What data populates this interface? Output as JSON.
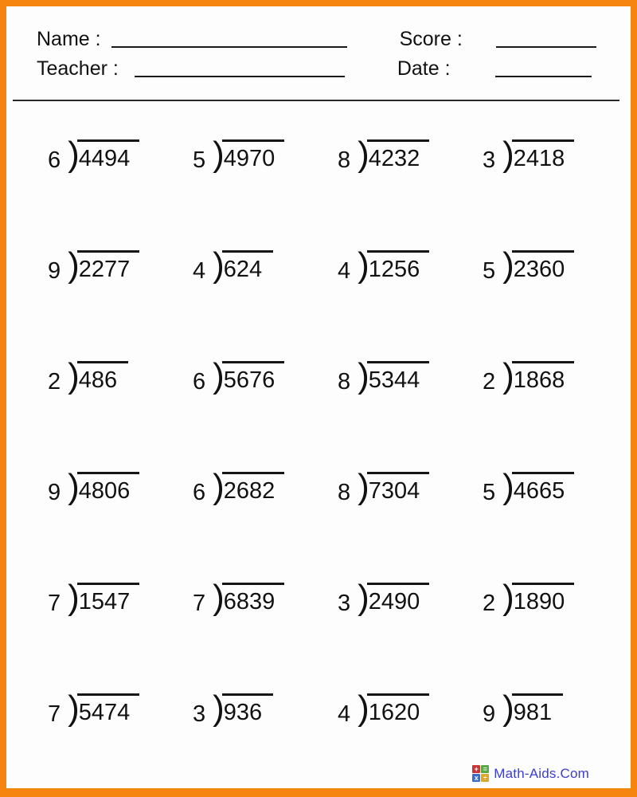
{
  "colors": {
    "border_orange": "#f5850f",
    "brand_blue": "#3c3cd8",
    "ink": "#111111"
  },
  "header": {
    "name_label": "Name :",
    "teacher_label": "Teacher :",
    "score_label": "Score :",
    "date_label": "Date :"
  },
  "glyphs": {
    "bracket": ")"
  },
  "problems": [
    {
      "divisor": "6",
      "dividend": "4494"
    },
    {
      "divisor": "5",
      "dividend": "4970"
    },
    {
      "divisor": "8",
      "dividend": "4232"
    },
    {
      "divisor": "3",
      "dividend": "2418"
    },
    {
      "divisor": "9",
      "dividend": "2277"
    },
    {
      "divisor": "4",
      "dividend": "624"
    },
    {
      "divisor": "4",
      "dividend": "1256"
    },
    {
      "divisor": "5",
      "dividend": "2360"
    },
    {
      "divisor": "2",
      "dividend": "486"
    },
    {
      "divisor": "6",
      "dividend": "5676"
    },
    {
      "divisor": "8",
      "dividend": "5344"
    },
    {
      "divisor": "2",
      "dividend": "1868"
    },
    {
      "divisor": "9",
      "dividend": "4806"
    },
    {
      "divisor": "6",
      "dividend": "2682"
    },
    {
      "divisor": "8",
      "dividend": "7304"
    },
    {
      "divisor": "5",
      "dividend": "4665"
    },
    {
      "divisor": "7",
      "dividend": "1547"
    },
    {
      "divisor": "7",
      "dividend": "6839"
    },
    {
      "divisor": "3",
      "dividend": "2490"
    },
    {
      "divisor": "2",
      "dividend": "1890"
    },
    {
      "divisor": "7",
      "dividend": "5474"
    },
    {
      "divisor": "3",
      "dividend": "936"
    },
    {
      "divisor": "4",
      "dividend": "1620"
    },
    {
      "divisor": "9",
      "dividend": "981"
    }
  ],
  "footer": {
    "brand": "Math-Aids.Com",
    "logo_tiles": [
      {
        "symbol": "+",
        "color": "#cc3333"
      },
      {
        "symbol": "=",
        "color": "#55aa44"
      },
      {
        "symbol": "x",
        "color": "#3a6cc8"
      },
      {
        "symbol": "÷",
        "color": "#d9a72e"
      }
    ]
  }
}
